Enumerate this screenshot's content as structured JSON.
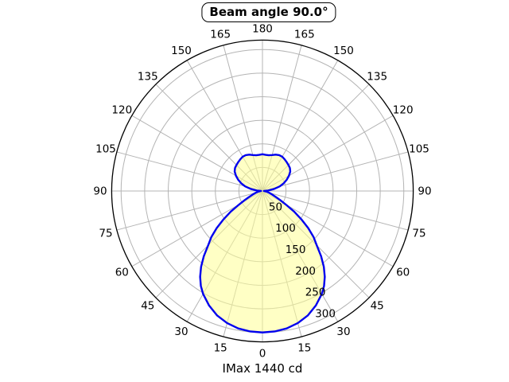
{
  "title": "Beam angle 90.0°",
  "caption": "IMax 1440 cd",
  "colors": {
    "curve": "#0000ee",
    "fill": "#ffff96",
    "fill_opacity": 0.55,
    "grid": "#b4b4b4",
    "axis": "#000000",
    "background": "#ffffff",
    "text": "#000000"
  },
  "chart_data": {
    "type": "line",
    "polar": true,
    "title": "Beam angle 90.0°",
    "annotation": "IMax 1440 cd",
    "imax_cd": 1440,
    "beam_angle_deg": 90.0,
    "grid": true,
    "angle_ticks_deg": [
      0,
      15,
      30,
      45,
      60,
      75,
      90,
      105,
      120,
      135,
      150,
      165,
      180
    ],
    "angle_spoke_step_deg": 15,
    "radial_ticks": [
      50,
      100,
      150,
      200,
      250,
      300
    ],
    "radial_max": 320,
    "radial_label_angle_deg": 25,
    "series": [
      {
        "name": "luminous-intensity-curve",
        "mirrored": true,
        "points": [
          [
            0,
            300
          ],
          [
            5,
            299
          ],
          [
            10,
            296
          ],
          [
            15,
            290
          ],
          [
            20,
            281
          ],
          [
            25,
            268
          ],
          [
            30,
            252
          ],
          [
            33,
            240
          ],
          [
            36,
            225
          ],
          [
            39,
            207
          ],
          [
            42,
            186
          ],
          [
            45,
            163
          ],
          [
            48,
            146
          ],
          [
            51,
            125
          ],
          [
            54,
            102
          ],
          [
            57,
            80
          ],
          [
            60,
            57
          ],
          [
            63,
            42
          ],
          [
            66,
            31
          ],
          [
            70,
            22
          ],
          [
            75,
            15
          ],
          [
            80,
            10
          ],
          [
            85,
            6
          ],
          [
            90,
            3
          ],
          [
            95,
            12
          ],
          [
            100,
            25
          ],
          [
            105,
            38
          ],
          [
            110,
            48
          ],
          [
            115,
            57
          ],
          [
            120,
            65
          ],
          [
            125,
            72
          ],
          [
            130,
            76
          ],
          [
            135,
            78
          ],
          [
            140,
            80
          ],
          [
            145,
            82
          ],
          [
            150,
            84
          ],
          [
            155,
            84
          ],
          [
            160,
            82
          ],
          [
            165,
            79
          ],
          [
            170,
            77
          ],
          [
            175,
            77
          ],
          [
            180,
            78
          ]
        ]
      }
    ]
  }
}
